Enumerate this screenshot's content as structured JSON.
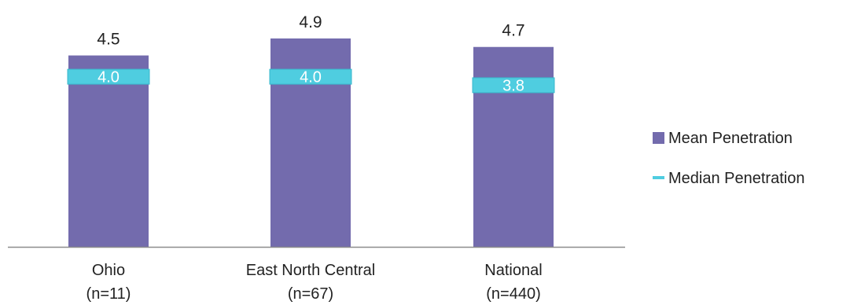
{
  "chart_data": {
    "type": "bar",
    "categories": [
      {
        "line1": "Ohio",
        "line2": "(n=11)"
      },
      {
        "line1": "East North Central",
        "line2": "(n=67)"
      },
      {
        "line1": "National",
        "line2": "(n=440)"
      }
    ],
    "series": [
      {
        "name": "Mean Penetration",
        "values": [
          4.5,
          4.9,
          4.7
        ],
        "labels": [
          "4.5",
          "4.9",
          "4.7"
        ]
      },
      {
        "name": "Median Penetration",
        "values": [
          4.0,
          4.0,
          3.8
        ],
        "labels": [
          "4.0",
          "4.0",
          "3.8"
        ]
      }
    ],
    "ylim": [
      0,
      5.2
    ],
    "legend_position": "right",
    "grid": false,
    "colors": {
      "bar": "#736bad",
      "median": "#4fcde0",
      "median_border": "#3ab8cc",
      "axis": "#8c8c8c"
    }
  }
}
